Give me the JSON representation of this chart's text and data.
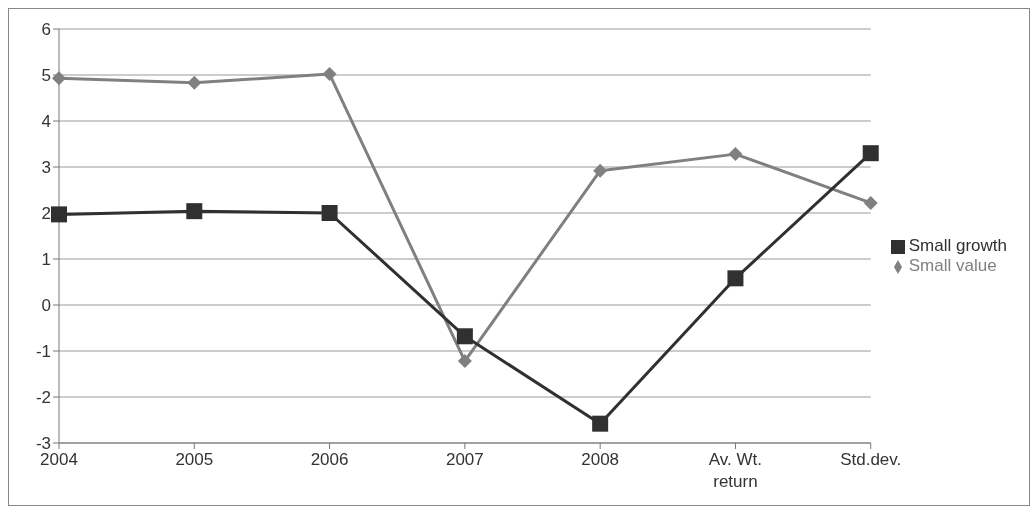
{
  "chart_data": {
    "type": "line",
    "categories": [
      "2004",
      "2005",
      "2006",
      "2007",
      "2008",
      "Av. Wt. return",
      "Std.dev."
    ],
    "series": [
      {
        "name": "Small value",
        "color": "#808080",
        "marker": "diamond",
        "values": [
          4.93,
          4.83,
          5.02,
          -1.22,
          2.92,
          3.28,
          2.22
        ]
      },
      {
        "name": "Small growth",
        "color": "#303030",
        "marker": "square",
        "values": [
          1.97,
          2.04,
          2.0,
          -0.68,
          -2.58,
          0.58,
          3.3
        ]
      }
    ],
    "ylim": [
      -3,
      6
    ],
    "yticks": [
      -3,
      -2,
      -1,
      0,
      1,
      2,
      3,
      4,
      5,
      6
    ],
    "grid": "y",
    "legend": "right"
  }
}
